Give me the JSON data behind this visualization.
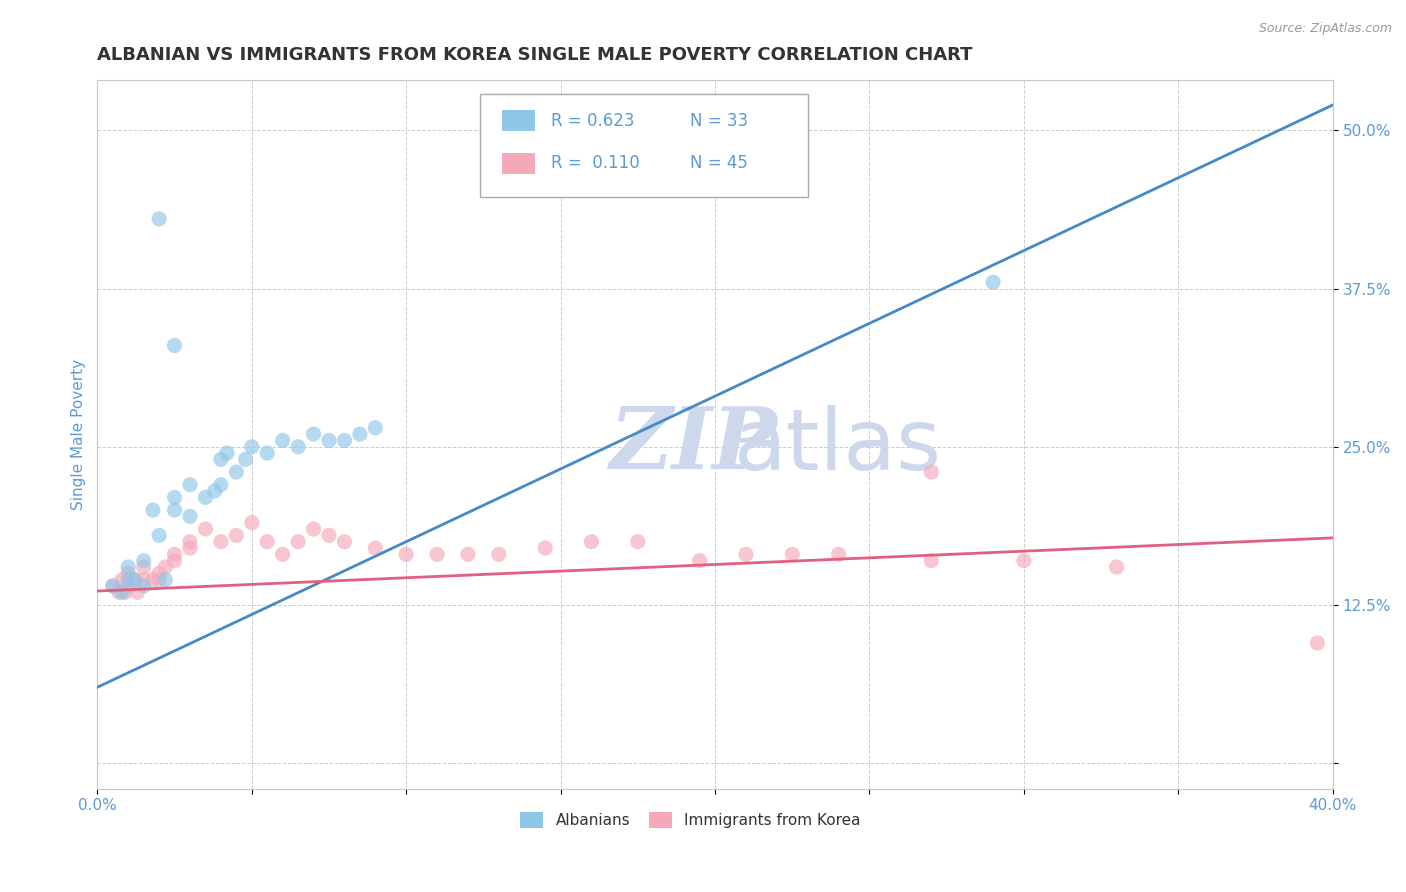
{
  "title": "ALBANIAN VS IMMIGRANTS FROM KOREA SINGLE MALE POVERTY CORRELATION CHART",
  "source": "Source: ZipAtlas.com",
  "ylabel": "Single Male Poverty",
  "xlim": [
    0.0,
    0.4
  ],
  "ylim": [
    -0.02,
    0.54
  ],
  "yticks": [
    0.0,
    0.125,
    0.25,
    0.375,
    0.5
  ],
  "ytick_labels": [
    "",
    "12.5%",
    "25.0%",
    "37.5%",
    "50.0%"
  ],
  "xticks": [
    0.0,
    0.05,
    0.1,
    0.15,
    0.2,
    0.25,
    0.3,
    0.35,
    0.4
  ],
  "xtick_labels": [
    "0.0%",
    "",
    "",
    "",
    "",
    "",
    "",
    "",
    "40.0%"
  ],
  "legend_R1": "0.623",
  "legend_N1": "33",
  "legend_R2": "0.110",
  "legend_N2": "45",
  "color_albanian": "#8ec6e8",
  "color_korea": "#f5a8b8",
  "color_line_albanian": "#4489c8",
  "color_line_korea": "#e06080",
  "color_axis_label": "#5b9bd5",
  "color_tick_label": "#5b9bd5",
  "albanians_x": [
    0.005,
    0.008,
    0.01,
    0.01,
    0.012,
    0.015,
    0.015,
    0.018,
    0.02,
    0.022,
    0.025,
    0.025,
    0.03,
    0.03,
    0.035,
    0.038,
    0.04,
    0.04,
    0.042,
    0.045,
    0.048,
    0.05,
    0.055,
    0.06,
    0.065,
    0.07,
    0.075,
    0.08,
    0.085,
    0.09,
    0.02,
    0.025,
    0.29
  ],
  "albanians_y": [
    0.14,
    0.135,
    0.155,
    0.145,
    0.145,
    0.14,
    0.16,
    0.2,
    0.18,
    0.145,
    0.21,
    0.2,
    0.22,
    0.195,
    0.21,
    0.215,
    0.22,
    0.24,
    0.245,
    0.23,
    0.24,
    0.25,
    0.245,
    0.255,
    0.25,
    0.26,
    0.255,
    0.255,
    0.26,
    0.265,
    0.43,
    0.33,
    0.38
  ],
  "korea_x": [
    0.005,
    0.007,
    0.008,
    0.009,
    0.01,
    0.01,
    0.012,
    0.013,
    0.015,
    0.015,
    0.018,
    0.02,
    0.02,
    0.022,
    0.025,
    0.025,
    0.03,
    0.03,
    0.035,
    0.04,
    0.045,
    0.05,
    0.055,
    0.06,
    0.065,
    0.07,
    0.075,
    0.08,
    0.09,
    0.1,
    0.11,
    0.12,
    0.13,
    0.145,
    0.16,
    0.175,
    0.195,
    0.21,
    0.225,
    0.24,
    0.27,
    0.3,
    0.33,
    0.27,
    0.395
  ],
  "korea_y": [
    0.14,
    0.135,
    0.145,
    0.135,
    0.14,
    0.15,
    0.145,
    0.135,
    0.155,
    0.145,
    0.145,
    0.15,
    0.145,
    0.155,
    0.165,
    0.16,
    0.175,
    0.17,
    0.185,
    0.175,
    0.18,
    0.19,
    0.175,
    0.165,
    0.175,
    0.185,
    0.18,
    0.175,
    0.17,
    0.165,
    0.165,
    0.165,
    0.165,
    0.17,
    0.175,
    0.175,
    0.16,
    0.165,
    0.165,
    0.165,
    0.16,
    0.16,
    0.155,
    0.23,
    0.095
  ],
  "watermark_top": "ZIP",
  "watermark_bottom": "atlas",
  "background_color": "#ffffff",
  "grid_color": "#c8c8c8",
  "title_fontsize": 13,
  "axis_label_fontsize": 11,
  "tick_label_fontsize": 11,
  "legend_fontsize": 12,
  "watermark_color": "#cdd8ec"
}
